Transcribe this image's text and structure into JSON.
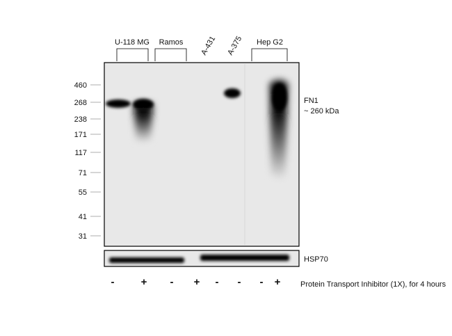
{
  "lanes": {
    "groups": [
      "U-118 MG",
      "Ramos",
      "A-431",
      "A-375",
      "Hep G2"
    ]
  },
  "markers": [
    "460",
    "268",
    "238",
    "171",
    "117",
    "71",
    "55",
    "41",
    "31"
  ],
  "target": {
    "name": "FN1",
    "size": "~ 260 kDa"
  },
  "loading_control": "HSP70",
  "treatment": {
    "signs": [
      "-",
      "+",
      "-",
      "+",
      "-",
      "-",
      "-",
      "+"
    ],
    "label": "Protein Transport Inhibitor (1X), for 4 hours"
  }
}
